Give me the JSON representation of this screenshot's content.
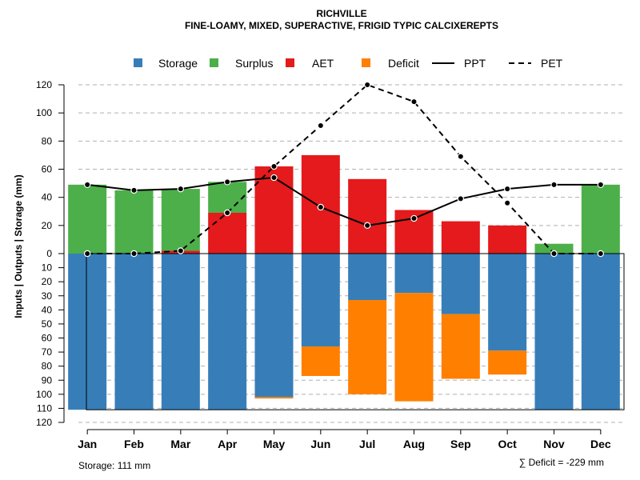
{
  "chart_data": {
    "type": "bar",
    "title": "RICHVILLE",
    "subtitle": "FINE-LOAMY, MIXED, SUPERACTIVE, FRIGID TYPIC CALCIXEREPTS",
    "ylabel": "Inputs | Outputs | Storage     (mm)",
    "categories": [
      "Jan",
      "Feb",
      "Mar",
      "Apr",
      "May",
      "Jun",
      "Jul",
      "Aug",
      "Sep",
      "Oct",
      "Nov",
      "Dec"
    ],
    "upper_axis": {
      "ylim": [
        0,
        120
      ],
      "ticks": [
        "0",
        "20",
        "40",
        "60",
        "80",
        "100",
        "120"
      ]
    },
    "lower_axis": {
      "ylim": [
        0,
        120
      ],
      "ticks": [
        "10",
        "20",
        "30",
        "40",
        "50",
        "60",
        "70",
        "80",
        "90",
        "100",
        "110",
        "120"
      ]
    },
    "series": [
      {
        "name": "Storage",
        "color": "#377EB8",
        "values": [
          111,
          111,
          111,
          111,
          102,
          66,
          33,
          28,
          43,
          69,
          111,
          111
        ]
      },
      {
        "name": "Surplus",
        "color": "#4DAF4A",
        "values": [
          49,
          45,
          44,
          22,
          0,
          0,
          0,
          0,
          0,
          0,
          7,
          49
        ]
      },
      {
        "name": "AET",
        "color": "#E41A1C",
        "values": [
          0,
          0,
          2,
          29,
          62,
          70,
          53,
          31,
          23,
          20,
          0,
          0
        ]
      },
      {
        "name": "Deficit",
        "color": "#FF7F00",
        "values": [
          0,
          0,
          0,
          0,
          1,
          21,
          67,
          77,
          46,
          17,
          0,
          0
        ]
      },
      {
        "name": "PPT",
        "style": "solid",
        "values": [
          49,
          45,
          46,
          51,
          54,
          33,
          20,
          25,
          39,
          46,
          49,
          49
        ]
      },
      {
        "name": "PET",
        "style": "dashed",
        "values": [
          0,
          0,
          2,
          29,
          62,
          91,
          120,
          108,
          69,
          36,
          0,
          0
        ]
      }
    ],
    "storage_note": "Storage: 111 mm",
    "deficit_note": "∑ Deficit = -229 mm",
    "grid": true,
    "legend": "top"
  }
}
